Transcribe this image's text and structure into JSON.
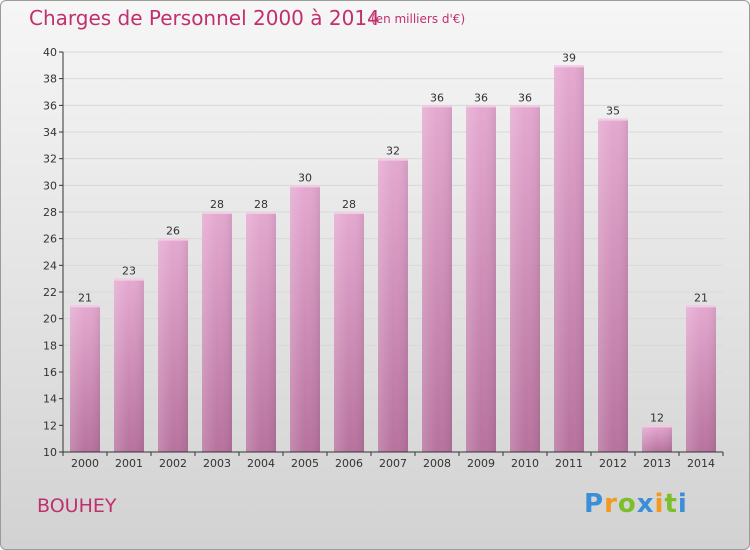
{
  "header": {
    "title": "Charges de Personnel 2000 à 2014",
    "subtitle": "(en milliers d'€)"
  },
  "commune": "BOUHEY",
  "logo": {
    "text": "Proxiti",
    "letters": [
      {
        "ch": "P",
        "color": "#3a8fd8"
      },
      {
        "ch": "r",
        "color": "#f39a1e"
      },
      {
        "ch": "o",
        "color": "#7bbf2a"
      },
      {
        "ch": "x",
        "color": "#3a8fd8"
      },
      {
        "ch": "i",
        "color": "#f39a1e"
      },
      {
        "ch": "t",
        "color": "#7bbf2a"
      },
      {
        "ch": "i",
        "color": "#3a8fd8"
      }
    ]
  },
  "colors": {
    "accent": "#c0306e",
    "bar_top": "#e5a9d0",
    "bar_bottom": "#b7729e",
    "grid": "#d8d8d8",
    "axis": "#333333"
  },
  "chart_data": {
    "type": "bar",
    "categories": [
      "2000",
      "2001",
      "2002",
      "2003",
      "2004",
      "2005",
      "2006",
      "2007",
      "2008",
      "2009",
      "2010",
      "2011",
      "2012",
      "2013",
      "2014"
    ],
    "values": [
      21,
      23,
      26,
      28,
      28,
      30,
      28,
      32,
      36,
      36,
      36,
      39,
      35,
      12,
      21
    ],
    "data_labels": [
      "21",
      "23",
      "26",
      "28",
      "28",
      "30",
      "28",
      "32",
      "36",
      "36",
      "36",
      "39",
      "35",
      "12",
      "21"
    ],
    "ylim": [
      10,
      40
    ],
    "yticks": [
      10,
      12,
      14,
      16,
      18,
      20,
      22,
      24,
      26,
      28,
      30,
      32,
      34,
      36,
      38,
      40
    ],
    "grid": true,
    "legend": "none"
  }
}
